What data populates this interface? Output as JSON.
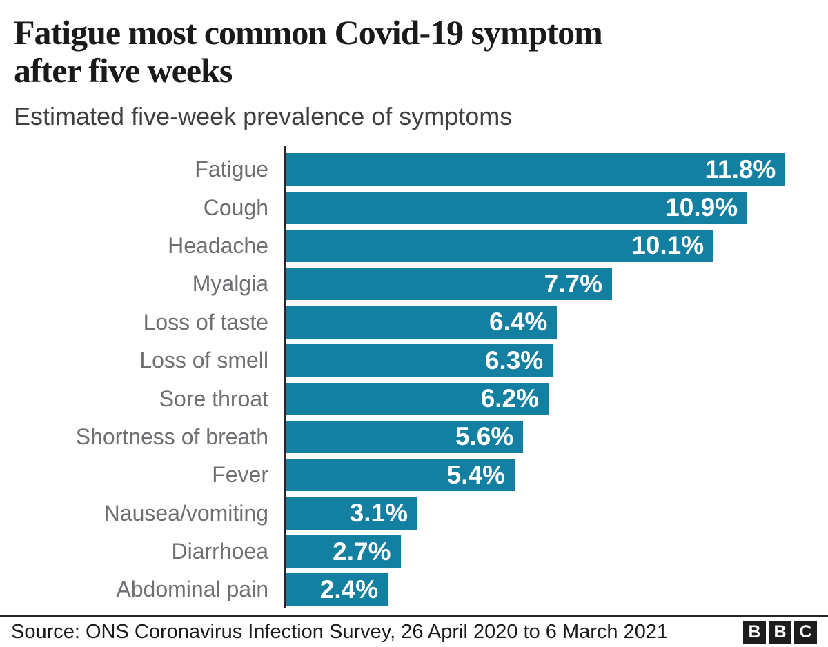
{
  "header": {
    "title": "Fatigue most common Covid-19 symptom\nafter five weeks",
    "subtitle": "Estimated five-week prevalence of symptoms"
  },
  "chart_data": {
    "type": "bar",
    "orientation": "horizontal",
    "title": "Fatigue most common Covid-19 symptom after five weeks",
    "subtitle": "Estimated five-week prevalence of symptoms",
    "xlabel": "",
    "ylabel": "",
    "xlim": [
      0,
      12.2
    ],
    "grid": false,
    "legend": false,
    "categories": [
      "Fatigue",
      "Cough",
      "Headache",
      "Myalgia",
      "Loss of taste",
      "Loss of smell",
      "Sore throat",
      "Shortness of breath",
      "Fever",
      "Nausea/vomiting",
      "Diarrhoea",
      "Abdominal pain"
    ],
    "values": [
      11.8,
      10.9,
      10.1,
      7.7,
      6.4,
      6.3,
      6.2,
      5.6,
      5.4,
      3.1,
      2.7,
      2.4
    ],
    "value_labels": [
      "11.8%",
      "10.9%",
      "10.1%",
      "7.7%",
      "6.4%",
      "6.3%",
      "6.2%",
      "5.6%",
      "5.4%",
      "3.1%",
      "2.7%",
      "2.4%"
    ],
    "colors": {
      "bar": "#1380a1",
      "category_label": "#6f6f73",
      "value_label": "#ffffff",
      "axis_line": "#26262b",
      "title": "#1a1a1a",
      "subtitle": "#3f3f42"
    }
  },
  "footer": {
    "source": "Source: ONS Coronavirus Infection Survey, 26 April 2020 to 6 March 2021",
    "logo_letters": [
      "B",
      "B",
      "C"
    ]
  }
}
